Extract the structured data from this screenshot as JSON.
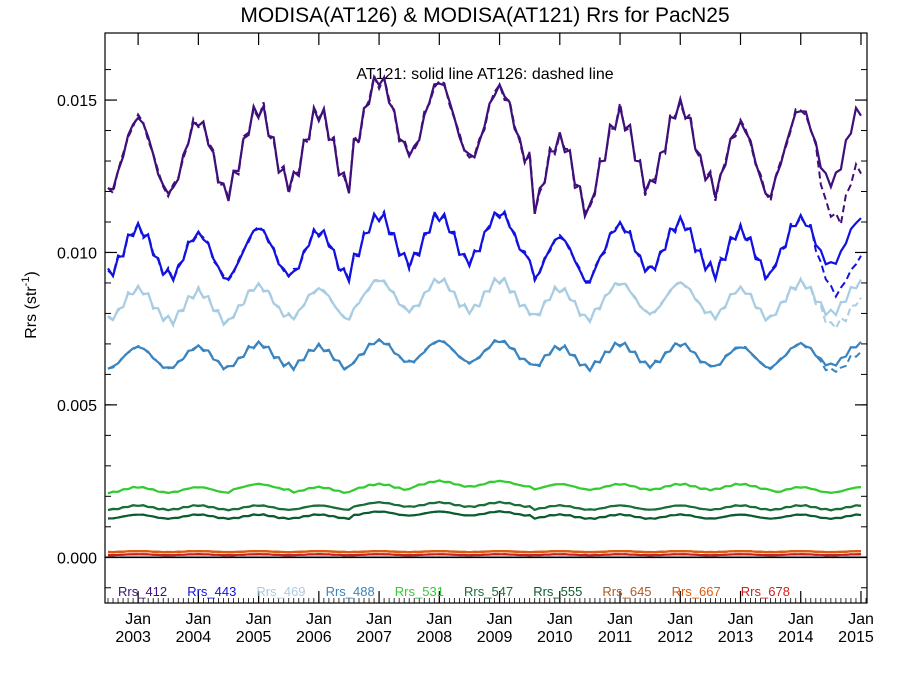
{
  "chart_data": {
    "type": "line",
    "title": "MODISA(AT126) & MODISA(AT121)  Rrs for PacN25",
    "annotation": "AT121: solid line   AT126: dashed line",
    "ylabel": "Rrs (str",
    "ylabel_sup": "-1",
    "ylabel_close": ")",
    "ylim": [
      -0.0015,
      0.0172
    ],
    "xlim": [
      2002.45,
      2015.1
    ],
    "y_ticks": [
      {
        "value": 0.0,
        "label": "0.000"
      },
      {
        "value": 0.005,
        "label": "0.005"
      },
      {
        "value": 0.01,
        "label": "0.010"
      },
      {
        "value": 0.015,
        "label": "0.015"
      }
    ],
    "x_ticks": [
      {
        "value": 2003.0,
        "month": "Jan",
        "year": "2003"
      },
      {
        "value": 2004.0,
        "month": "Jan",
        "year": "2004"
      },
      {
        "value": 2005.0,
        "month": "Jan",
        "year": "2005"
      },
      {
        "value": 2006.0,
        "month": "Jan",
        "year": "2006"
      },
      {
        "value": 2007.0,
        "month": "Jan",
        "year": "2007"
      },
      {
        "value": 2008.0,
        "month": "Jan",
        "year": "2008"
      },
      {
        "value": 2009.0,
        "month": "Jan",
        "year": "2009"
      },
      {
        "value": 2010.0,
        "month": "Jan",
        "year": "2010"
      },
      {
        "value": 2011.0,
        "month": "Jan",
        "year": "2011"
      },
      {
        "value": 2012.0,
        "month": "Jan",
        "year": "2012"
      },
      {
        "value": 2013.0,
        "month": "Jan",
        "year": "2013"
      },
      {
        "value": 2014.0,
        "month": "Jan",
        "year": "2014"
      },
      {
        "value": 2015.0,
        "month": "Jan",
        "year": "2015"
      }
    ],
    "legend_placement": "bottom",
    "grid": false,
    "series": [
      {
        "name": "Rrs_412",
        "color": "#3f0f7a",
        "mean": 0.0122,
        "amp": 0.0024,
        "phase": 0.3,
        "anomaly_at126": -0.0018,
        "peaks": [
          0.0153,
          0.0144,
          0.0143,
          0.0147,
          0.0146,
          0.0157,
          0.0156,
          0.0154,
          0.0137,
          0.0145,
          0.0148,
          0.0142,
          0.0147
        ]
      },
      {
        "name": "Rrs_443",
        "color": "#1212e0",
        "mean": 0.0093,
        "amp": 0.0015,
        "phase": 0.3,
        "anomaly_at126": -0.0013,
        "peaks": [
          0.0111,
          0.0108,
          0.0106,
          0.0108,
          0.0107,
          0.0112,
          0.0112,
          0.0113,
          0.0105,
          0.0109,
          0.011,
          0.0107,
          0.0111
        ]
      },
      {
        "name": "Rrs_469",
        "color": "#a8cde3",
        "mean": 0.008,
        "amp": 0.001,
        "phase": 0.3,
        "anomaly_at126": -0.0006,
        "peaks": [
          0.009,
          0.0088,
          0.0087,
          0.0089,
          0.0088,
          0.0091,
          0.0091,
          0.0091,
          0.0088,
          0.009,
          0.009,
          0.0088,
          0.009
        ]
      },
      {
        "name": "Rrs_488",
        "color": "#3a84bf",
        "mean": 0.0064,
        "amp": 0.0007,
        "phase": 0.3,
        "anomaly_at126": -0.0003,
        "peaks": [
          0.007,
          0.0069,
          0.0069,
          0.007,
          0.0069,
          0.0071,
          0.0071,
          0.0071,
          0.0069,
          0.007,
          0.007,
          0.0069,
          0.007
        ]
      },
      {
        "name": "Rrs_531",
        "color": "#33cc33",
        "mean": 0.0022,
        "amp": 0.00018,
        "phase": 0.3,
        "anomaly_at126": 0.0,
        "peaks": [
          0.0024,
          0.0023,
          0.0023,
          0.0024,
          0.0023,
          0.0024,
          0.0025,
          0.0025,
          0.0024,
          0.0024,
          0.0024,
          0.0024,
          0.0023
        ]
      },
      {
        "name": "Rrs_547",
        "color": "#1b6e3a",
        "mean": 0.0016,
        "amp": 0.00014,
        "phase": 0.3,
        "anomaly_at126": 0.0,
        "peaks": [
          0.0018,
          0.0017,
          0.0017,
          0.0017,
          0.0017,
          0.0018,
          0.0018,
          0.0018,
          0.0017,
          0.0017,
          0.0017,
          0.0017,
          0.0017
        ]
      },
      {
        "name": "Rrs_555",
        "color": "#0d5c2e",
        "mean": 0.0013,
        "amp": 0.00013,
        "phase": 0.3,
        "anomaly_at126": 0.0,
        "peaks": [
          0.0015,
          0.0014,
          0.0014,
          0.0014,
          0.0014,
          0.0015,
          0.0015,
          0.0015,
          0.0014,
          0.0014,
          0.0014,
          0.0014,
          0.0014
        ]
      },
      {
        "name": "Rrs_645",
        "color": "#b35a1f",
        "mean": 0.00015,
        "amp": 3e-05,
        "phase": 0.3,
        "anomaly_at126": 0.0,
        "peaks": [
          0.0002,
          0.0002,
          0.0002,
          0.0002,
          0.0002,
          0.0002,
          0.0002,
          0.0002,
          0.0002,
          0.0002,
          0.0002,
          0.0002,
          0.0002
        ]
      },
      {
        "name": "Rrs_667",
        "color": "#e05a0c",
        "mean": 0.00012,
        "amp": 3e-05,
        "phase": 0.3,
        "anomaly_at126": 0.0,
        "peaks": [
          0.0002,
          0.0002,
          0.0002,
          0.0002,
          0.0002,
          0.0002,
          0.0002,
          0.0002,
          0.0002,
          0.0002,
          0.0002,
          0.0002,
          0.0002
        ]
      },
      {
        "name": "Rrs_678",
        "color": "#cc2222",
        "mean": 0.0001,
        "amp": 3e-05,
        "phase": 0.3,
        "anomaly_at126": 0.0,
        "peaks": [
          0.0001,
          0.0001,
          0.0001,
          0.0001,
          0.0001,
          0.0001,
          0.0001,
          0.0001,
          0.0001,
          0.0001,
          0.0001,
          0.0001,
          0.0001
        ]
      }
    ]
  }
}
